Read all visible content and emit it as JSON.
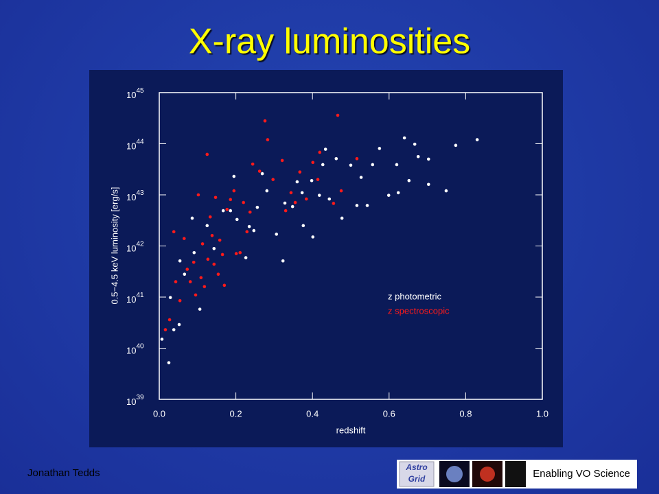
{
  "chart_data": {
    "type": "scatter",
    "title": "X-ray luminosities",
    "xlabel": "redshift",
    "ylabel": "0.5−4.5 keV luminosity [erg/s]",
    "xlim": [
      0,
      1
    ],
    "ylim": [
      1e+39,
      1e+45
    ],
    "ylog": true,
    "xticks": [
      {
        "value": 0,
        "label": "0.0"
      },
      0.2,
      0.4,
      0.6,
      0.8,
      {
        "value": 1,
        "label": "1.0"
      }
    ],
    "yticks": [
      {
        "value": 1e+39,
        "label": "10",
        "sup": "39"
      },
      {
        "value": 1e+40,
        "label": "10",
        "sup": "40"
      },
      {
        "value": 1e+41,
        "label": "10",
        "sup": "41"
      },
      {
        "value": 1e+42,
        "label": "10",
        "sup": "42"
      },
      {
        "value": 1e+43,
        "label": "10",
        "sup": "43"
      },
      {
        "value": 1e+44,
        "label": "10",
        "sup": "44"
      },
      {
        "value": 1e+45,
        "label": "10",
        "sup": "45"
      }
    ],
    "series": [
      {
        "name": "z photometric",
        "color": "#ffffff",
        "x": [
          0.007,
          0.025,
          0.029,
          0.038,
          0.052,
          0.054,
          0.066,
          0.086,
          0.091,
          0.106,
          0.125,
          0.143,
          0.167,
          0.186,
          0.195,
          0.203,
          0.226,
          0.235,
          0.247,
          0.256,
          0.269,
          0.281,
          0.306,
          0.323,
          0.328,
          0.348,
          0.36,
          0.373,
          0.376,
          0.398,
          0.401,
          0.418,
          0.427,
          0.434,
          0.444,
          0.462,
          0.477,
          0.5,
          0.516,
          0.527,
          0.543,
          0.557,
          0.575,
          0.599,
          0.62,
          0.64,
          0.652,
          0.667,
          0.703,
          0.703,
          0.749,
          0.774,
          0.83,
          0.676,
          0.624
        ],
        "values": [
          1.5e+40,
          5.2e+39,
          9.8e+40,
          2.3e+40,
          2.9e+40,
          5.1e+41,
          2.8e+41,
          3.5e+42,
          7.4e+41,
          5.8e+40,
          2.5e+42,
          8.9e+41,
          4.9e+42,
          4.9e+42,
          2.3e+43,
          3.3e+42,
          5.9e+41,
          2.4e+42,
          2e+42,
          5.7e+42,
          2.6e+43,
          1.2e+43,
          1.7e+42,
          5.1e+41,
          6.9e+42,
          5.9e+42,
          1.8e+43,
          1.1e+43,
          2.5e+42,
          1.9e+43,
          1.5e+42,
          9.8e+42,
          3.9e+43,
          7.8e+43,
          8.3e+42,
          5.1e+43,
          3.5e+42,
          3.8e+43,
          6.2e+42,
          2.2e+43,
          6.2e+42,
          3.9e+43,
          8.1e+43,
          9.8e+42,
          3.9e+43,
          1.3e+44,
          1.9e+43,
          9.8e+43,
          5e+43,
          1.6e+43,
          1.2e+43,
          9.3e+43,
          1.2e+44,
          5.6e+43,
          1.1e+43
        ]
      },
      {
        "name": "z spectroscopic",
        "color": "#ff1a1a",
        "x": [
          0.016,
          0.027,
          0.038,
          0.043,
          0.054,
          0.065,
          0.073,
          0.081,
          0.09,
          0.095,
          0.102,
          0.109,
          0.113,
          0.118,
          0.125,
          0.127,
          0.133,
          0.138,
          0.143,
          0.147,
          0.154,
          0.158,
          0.165,
          0.17,
          0.177,
          0.186,
          0.195,
          0.201,
          0.211,
          0.22,
          0.229,
          0.237,
          0.244,
          0.262,
          0.276,
          0.283,
          0.297,
          0.321,
          0.33,
          0.344,
          0.355,
          0.367,
          0.384,
          0.401,
          0.414,
          0.419,
          0.455,
          0.466,
          0.475,
          0.516
        ],
        "values": [
          2.3e+40,
          3.6e+40,
          1.9e+42,
          2e+41,
          8.5e+40,
          1.4e+42,
          3.5e+41,
          2e+41,
          4.8e+41,
          1.1e+41,
          1e+43,
          2.4e+41,
          1.1e+42,
          1.6e+41,
          6.2e+43,
          5.5e+41,
          3.7e+42,
          1.6e+42,
          4.4e+41,
          8.9e+42,
          2.8e+41,
          1.3e+42,
          6.8e+41,
          1.7e+41,
          5.2e+42,
          8.1e+42,
          1.2e+43,
          7.1e+41,
          7.4e+41,
          7.1e+42,
          1.9e+42,
          4.6e+42,
          4e+43,
          2.9e+43,
          2.8e+44,
          1.2e+44,
          2e+43,
          4.7e+43,
          4.9e+42,
          1.1e+43,
          7.1e+42,
          2.8e+43,
          8.3e+42,
          4.3e+43,
          2e+43,
          6.8e+43,
          6.8e+42,
          3.6e+44,
          1.2e+43,
          5.1e+43
        ]
      }
    ]
  },
  "footer": {
    "author": "Jonathan Tedds",
    "tagline": "Enabling VO Science",
    "logo": [
      "Astro",
      "Grid"
    ]
  }
}
